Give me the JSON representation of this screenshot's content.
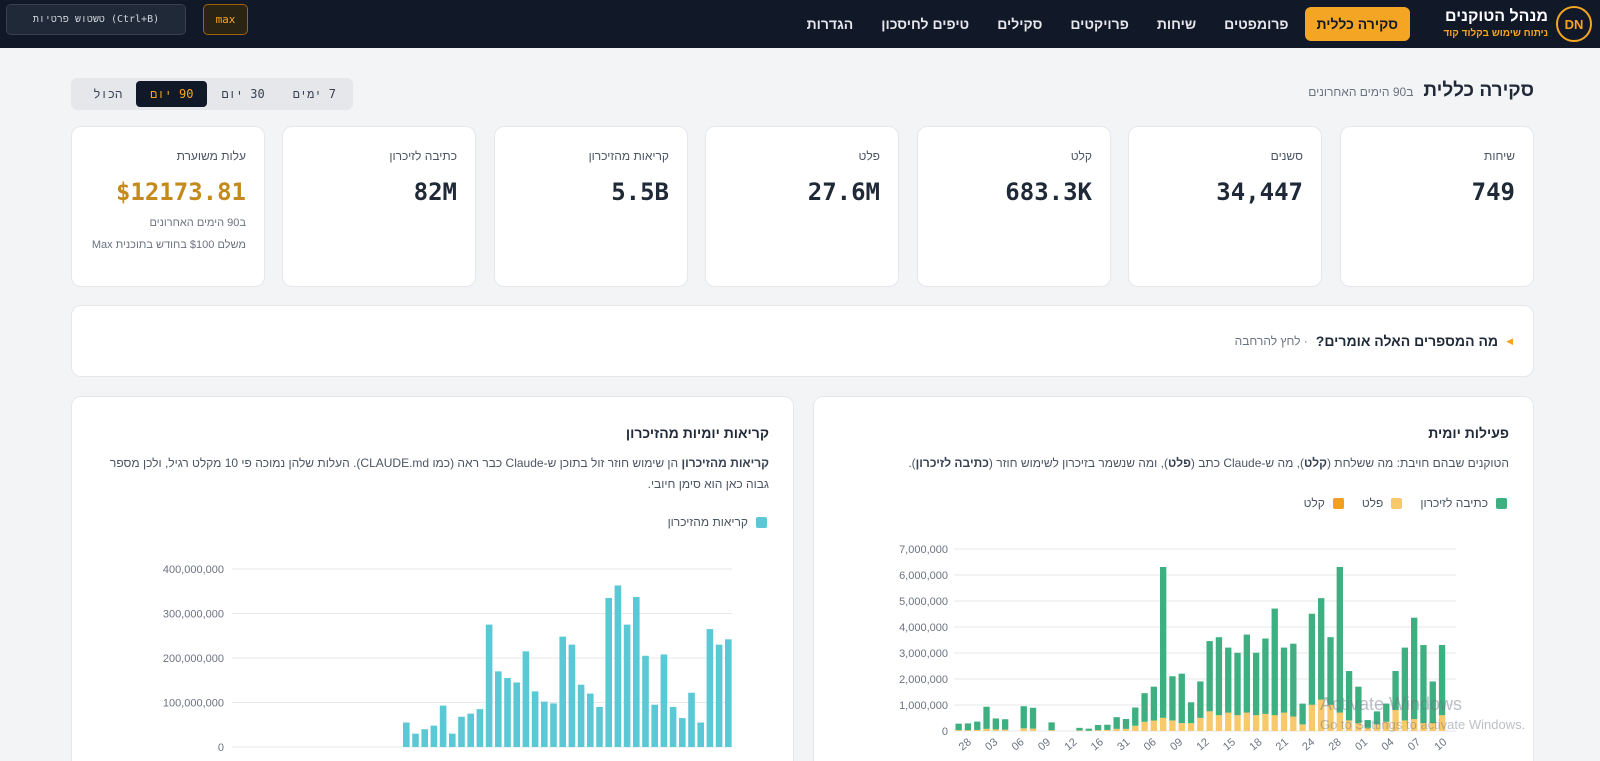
{
  "header": {
    "avatar": "DN",
    "title": "מנהל הטוקנים",
    "subtitle": "ניתוח שימוש בקלוד קוד",
    "nav": [
      "סקירה כללית",
      "פרומפטים",
      "שיחות",
      "פרויקטים",
      "סקילים",
      "טיפים לחיסכון",
      "הגדרות"
    ],
    "active_nav": 0,
    "plan_badge": "max",
    "privacy_button": "טשטוש פרטיות (Ctrl+B)"
  },
  "overview": {
    "title": "סקירה כללית",
    "subtitle": "ב90 הימים האחרונים",
    "ranges": [
      "7 ימים",
      "30 יום",
      "90 יום",
      "הכול"
    ],
    "active_range": 2
  },
  "stats": [
    {
      "label": "שיחות",
      "value": "749"
    },
    {
      "label": "סשנים",
      "value": "34,447"
    },
    {
      "label": "קלט",
      "value": "683.3K"
    },
    {
      "label": "פלט",
      "value": "27.6M"
    },
    {
      "label": "קריאות מהזיכרון",
      "value": "5.5B"
    },
    {
      "label": "כתיבה לזיכרון",
      "value": "82M"
    },
    {
      "label": "עלות משוערת",
      "value": "$12173.81",
      "note1": "ב90 הימים האחרונים",
      "note2": "משלם $100 בחודש בתוכנית Max"
    }
  ],
  "explain": {
    "question": "מה המספרים האלה אומרים?",
    "hint": "· לחץ להרחבה"
  },
  "activity_panel": {
    "title": "פעילות יומית",
    "desc_1": "הטוקנים שבהם חויבת: מה ששלחת (",
    "desc_b1": "קלט",
    "desc_2": "), מה ש-Claude כתב (",
    "desc_b2": "פלט",
    "desc_3": "), ומה שנשמר בזיכרון לשימוש חוזר (",
    "desc_b3": "כתיבה לזיכרון",
    "desc_4": ")."
  },
  "cache_panel": {
    "title": "קריאות יומיות מהזיכרון",
    "desc_b": "קריאות מהזיכרון",
    "desc": " הן שימוש חוזר זול בתוכן ש-Claude כבר ראה (כמו CLAUDE.md). העלות שלהן נמוכה פי 10 מקלט רגיל, ולכן מספר גבוה כאן הוא סימן חיובי."
  },
  "watermark": {
    "line1": "Activate Windows",
    "line2": "Go to Settings to activate Windows."
  },
  "colors": {
    "accent": "#f5a524",
    "nav_bg": "#111827",
    "cache_write": "#3daf80",
    "output": "#f8c96a",
    "input": "#f0a01e",
    "cache_read": "#5bc8d6"
  },
  "chart_data": [
    {
      "type": "bar",
      "stacked": true,
      "title": "פעילות יומית",
      "ylim": [
        0,
        7000000
      ],
      "yticks": [
        "0",
        "1,000,000",
        "2,000,000",
        "3,000,000",
        "4,000,000",
        "5,000,000",
        "6,000,000",
        "7,000,000"
      ],
      "xticks": [
        "28",
        "03",
        "06",
        "09",
        "12",
        "16",
        "31",
        "06",
        "09",
        "12",
        "15",
        "18",
        "21",
        "24",
        "28",
        "01",
        "04",
        "07",
        "10"
      ],
      "legend": [
        "כתיבה לזיכרון",
        "פלט",
        "קלט"
      ],
      "series": [
        {
          "name": "כתיבה לזיכרון",
          "values": [
            250000,
            260000,
            320000,
            850000,
            420000,
            400000,
            0,
            850000,
            800000,
            0,
            300000,
            0,
            0,
            100000,
            80000,
            200000,
            200000,
            450000,
            380000,
            700000,
            1100000,
            1300000,
            5800000,
            1700000,
            1900000,
            800000,
            1400000,
            2700000,
            3000000,
            2500000,
            2400000,
            3000000,
            2400000,
            2900000,
            4100000,
            2500000,
            2800000,
            800000,
            3500000,
            3900000,
            2600000,
            5600000,
            1900000,
            1400000,
            300000,
            500000,
            700000,
            1500000,
            2800000,
            3900000,
            3000000,
            1600000,
            2700000,
            0
          ]
        },
        {
          "name": "פלט",
          "values": [
            30000,
            30000,
            40000,
            80000,
            60000,
            50000,
            0,
            100000,
            90000,
            0,
            30000,
            0,
            0,
            20000,
            10000,
            30000,
            40000,
            80000,
            80000,
            200000,
            350000,
            400000,
            500000,
            400000,
            300000,
            300000,
            500000,
            750000,
            600000,
            700000,
            600000,
            700000,
            600000,
            650000,
            600000,
            700000,
            550000,
            250000,
            1000000,
            1200000,
            1000000,
            700000,
            400000,
            300000,
            120000,
            250000,
            350000,
            800000,
            400000,
            450000,
            300000,
            300000,
            600000,
            0
          ]
        },
        {
          "name": "קלט",
          "values": [
            2000,
            2000,
            2000,
            3000,
            2000,
            2000,
            0,
            3000,
            3000,
            0,
            1000,
            0,
            0,
            1000,
            1000,
            1000,
            1000,
            2000,
            2000,
            3000,
            4000,
            4000,
            8000,
            5000,
            5000,
            4000,
            6000,
            8000,
            8000,
            8000,
            8000,
            9000,
            8000,
            8000,
            9000,
            8000,
            8000,
            4000,
            10000,
            10000,
            9000,
            10000,
            6000,
            5000,
            2000,
            4000,
            5000,
            8000,
            7000,
            8000,
            6000,
            5000,
            8000,
            0
          ]
        }
      ]
    },
    {
      "type": "bar",
      "title": "קריאות יומיות מהזיכרון",
      "ylim": [
        0,
        400000000
      ],
      "yticks": [
        "0",
        "100,000,000",
        "200,000,000",
        "300,000,000",
        "400,000,000"
      ],
      "legend": [
        "קריאות מהזיכרון"
      ],
      "series": [
        {
          "name": "קריאות מהזיכרון",
          "values": [
            55000000,
            30000000,
            40000000,
            48000000,
            93000000,
            30000000,
            68000000,
            75000000,
            85000000,
            275000000,
            170000000,
            155000000,
            145000000,
            215000000,
            125000000,
            102000000,
            98000000,
            248000000,
            230000000,
            140000000,
            120000000,
            90000000,
            335000000,
            363000000,
            275000000,
            337000000,
            205000000,
            95000000,
            208000000,
            90000000,
            65000000,
            122000000,
            55000000,
            265000000,
            230000000,
            242000000
          ]
        }
      ]
    }
  ]
}
